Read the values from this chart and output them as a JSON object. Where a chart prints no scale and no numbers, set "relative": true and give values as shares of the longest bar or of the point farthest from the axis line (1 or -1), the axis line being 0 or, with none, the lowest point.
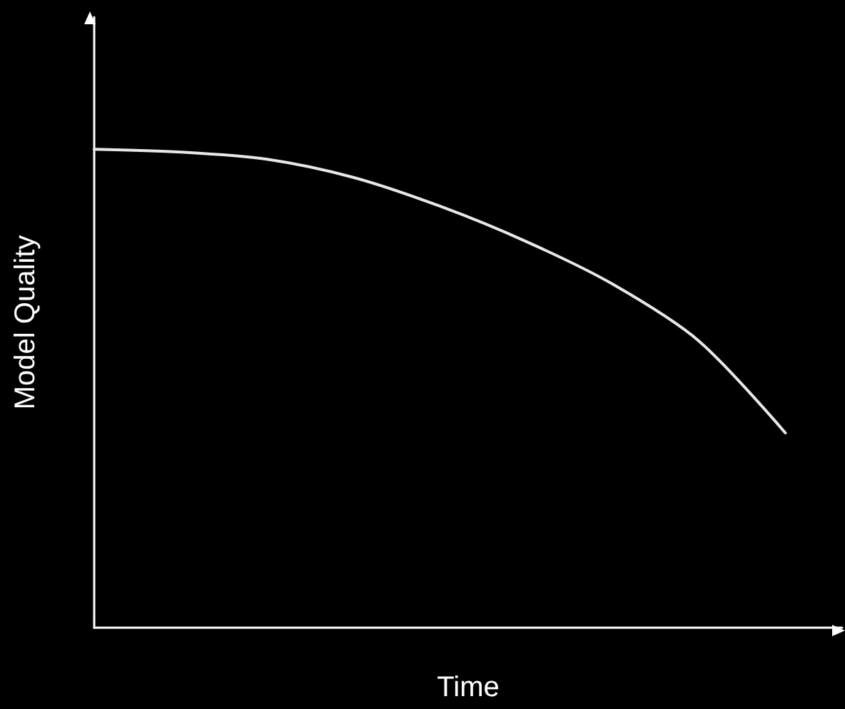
{
  "chart_data": {
    "type": "line",
    "relative": true,
    "xlabel": "Time",
    "ylabel": "Model Quality",
    "categories": [
      null,
      null,
      null,
      null,
      null,
      null,
      null,
      null,
      null
    ],
    "series": [
      {
        "color": "#e8e8e8",
        "values": [
          1.0,
          0.994,
          0.979,
          0.941,
          0.881,
          0.807,
          0.718,
          0.599,
          0.407
        ]
      }
    ],
    "marker": "none",
    "line_style": "solid",
    "grid": false
  }
}
